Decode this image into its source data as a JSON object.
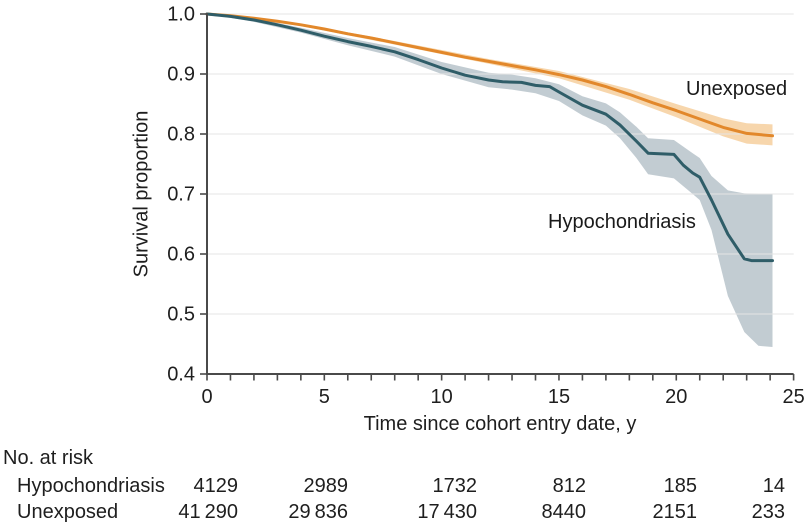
{
  "chart_data": {
    "type": "line",
    "title": "",
    "xlabel": "Time since cohort entry date, y",
    "ylabel": "Survival proportion",
    "xlim": [
      0,
      25
    ],
    "ylim": [
      0.4,
      1.0
    ],
    "xticks": [
      "0",
      "5",
      "10",
      "15",
      "20",
      "25"
    ],
    "yticks": [
      "1.0",
      "0.9",
      "0.8",
      "0.7",
      "0.6",
      "0.5",
      "0.4"
    ],
    "grid": true,
    "legend_position": "annotated-on-plot",
    "colors": {
      "grid": "#e3e3e3",
      "axis": "#4a4a4a",
      "text": "#1e1e1e"
    },
    "series": [
      {
        "name": "Unexposed",
        "color": "#e2882b",
        "band_color": "#f6cf9e",
        "x": [
          0,
          1,
          2,
          3,
          4,
          5,
          6,
          7,
          8,
          9,
          10,
          11,
          12,
          13,
          14,
          15,
          16,
          17,
          18,
          19,
          20,
          21,
          22,
          23,
          24.1
        ],
        "y": [
          1.0,
          0.997,
          0.993,
          0.988,
          0.982,
          0.975,
          0.967,
          0.96,
          0.952,
          0.944,
          0.936,
          0.928,
          0.921,
          0.914,
          0.907,
          0.899,
          0.89,
          0.879,
          0.866,
          0.852,
          0.839,
          0.825,
          0.811,
          0.801,
          0.797
        ],
        "band_x": [
          0,
          4,
          8,
          12,
          15,
          18,
          20,
          22,
          23,
          24.1
        ],
        "band_upper": [
          1.0,
          0.984,
          0.955,
          0.925,
          0.905,
          0.875,
          0.85,
          0.826,
          0.818,
          0.816
        ],
        "band_lower": [
          1.0,
          0.98,
          0.949,
          0.917,
          0.893,
          0.857,
          0.828,
          0.796,
          0.784,
          0.781
        ]
      },
      {
        "name": "Hypochondriasis",
        "color": "#2f5d68",
        "band_color": "#b7c3ca",
        "x": [
          0,
          1,
          2,
          3,
          4,
          5,
          6,
          7,
          8,
          9,
          10,
          11,
          12,
          12.6,
          13.4,
          14,
          14.6,
          15,
          16,
          17,
          17.6,
          18.3,
          18.8,
          19.9,
          20.3,
          20.7,
          21,
          21.5,
          22.2,
          22.9,
          23.2,
          24.1
        ],
        "y": [
          1.0,
          0.996,
          0.99,
          0.982,
          0.973,
          0.963,
          0.954,
          0.946,
          0.937,
          0.924,
          0.91,
          0.898,
          0.89,
          0.887,
          0.886,
          0.881,
          0.879,
          0.87,
          0.848,
          0.833,
          0.815,
          0.788,
          0.768,
          0.766,
          0.748,
          0.735,
          0.728,
          0.69,
          0.633,
          0.592,
          0.589,
          0.589
        ],
        "band_x": [
          0,
          2,
          4,
          6,
          8,
          10,
          12,
          13,
          14,
          15,
          16,
          17,
          17.6,
          18.3,
          18.8,
          19.9,
          20.7,
          21,
          21.5,
          22.2,
          22.9,
          23.5,
          24.1
        ],
        "band_upper": [
          1.0,
          0.993,
          0.977,
          0.96,
          0.945,
          0.92,
          0.902,
          0.899,
          0.893,
          0.883,
          0.863,
          0.851,
          0.836,
          0.812,
          0.793,
          0.79,
          0.768,
          0.76,
          0.73,
          0.706,
          0.701,
          0.7,
          0.7
        ],
        "band_lower": [
          1.0,
          0.987,
          0.969,
          0.948,
          0.929,
          0.9,
          0.878,
          0.874,
          0.868,
          0.855,
          0.831,
          0.814,
          0.793,
          0.76,
          0.733,
          0.726,
          0.7,
          0.69,
          0.64,
          0.53,
          0.47,
          0.447,
          0.445
        ]
      }
    ]
  },
  "risk_table": {
    "title": "No. at risk",
    "rows": [
      {
        "label": "Hypochondriasis",
        "values": [
          "4129",
          "2989",
          "1732",
          "812",
          "185",
          "14"
        ]
      },
      {
        "label": "Unexposed",
        "values": [
          "41 290",
          "29 836",
          "17 430",
          "8440",
          "2151",
          "233"
        ]
      }
    ]
  }
}
